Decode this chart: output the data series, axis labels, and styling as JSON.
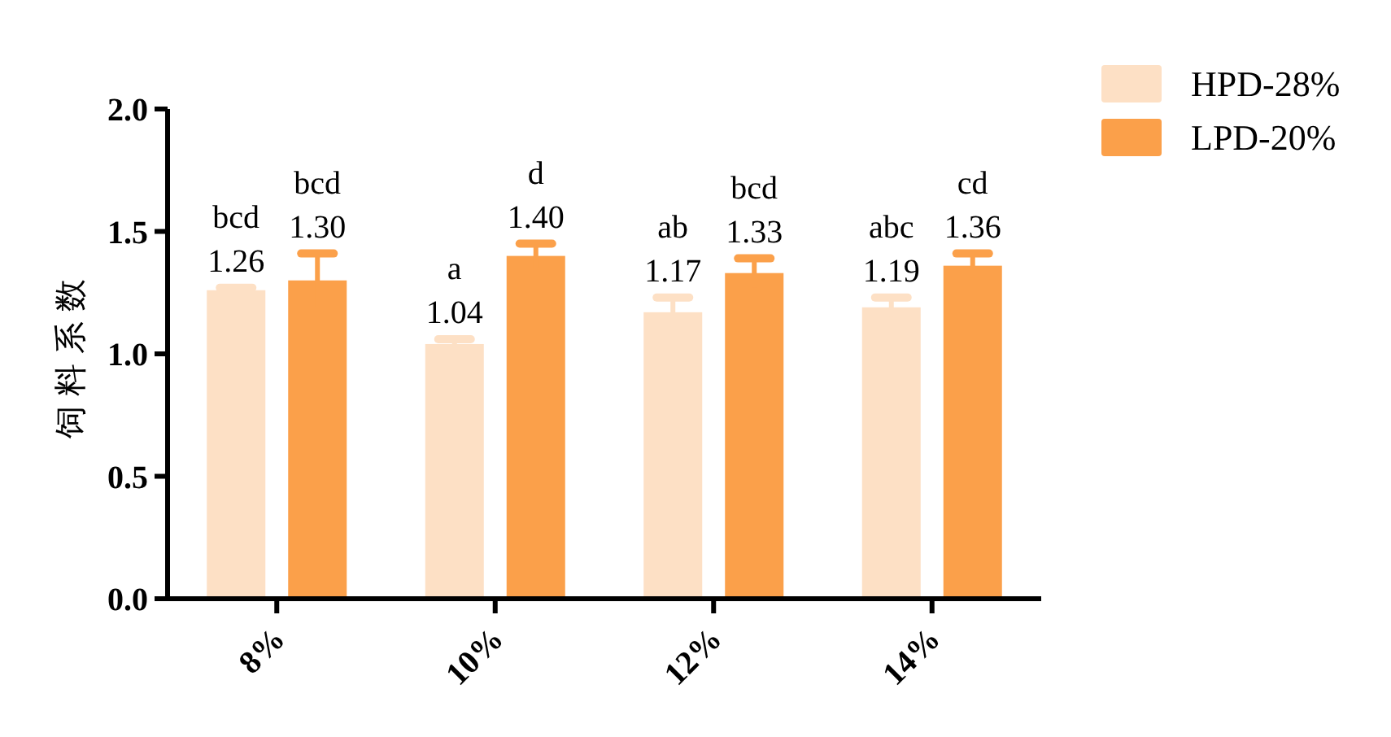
{
  "chart_data": {
    "type": "bar",
    "ylabel": "饲料系数",
    "categories": [
      "8%",
      "10%",
      "12%",
      "14%"
    ],
    "ylim": [
      0,
      2
    ],
    "yticks": [
      {
        "value": 0,
        "label": "0.0"
      },
      {
        "value": 0.5,
        "label": "0.5"
      },
      {
        "value": 1,
        "label": "1.0"
      },
      {
        "value": 1.5,
        "label": "1.5"
      },
      {
        "value": 2,
        "label": "2.0"
      }
    ],
    "legend": "top right",
    "grid": false,
    "series": [
      {
        "name": "HPD-28%",
        "color": "#fde0c5",
        "values": [
          1.26,
          1.04,
          1.17,
          1.19
        ],
        "errors": [
          0.01,
          0.02,
          0.06,
          0.04
        ],
        "value_labels": [
          "bcd\n1.26",
          "a\n1.04",
          "ab\n1.17",
          "abc\n1.19"
        ]
      },
      {
        "name": "LPD-20%",
        "color": "#fba04a",
        "values": [
          1.3,
          1.4,
          1.33,
          1.36
        ],
        "errors": [
          0.11,
          0.05,
          0.06,
          0.05
        ],
        "value_labels": [
          "bcd\n1.30",
          "d\n1.40",
          "bcd\n1.33",
          "cd\n1.36"
        ]
      }
    ]
  }
}
